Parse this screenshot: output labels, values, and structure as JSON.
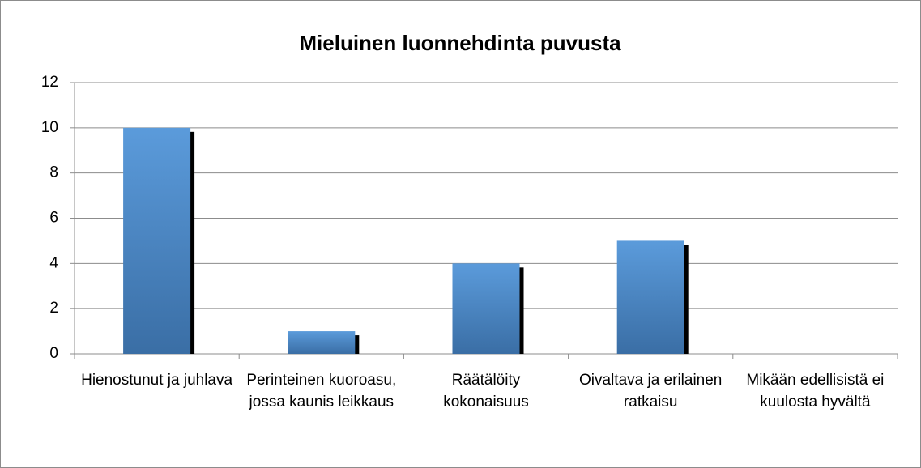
{
  "chart_data": {
    "type": "bar",
    "title": "Mieluinen luonnehdinta puvusta",
    "categories": [
      "Hienostunut ja juhlava",
      "Perinteinen kuoroasu, jossa kaunis leikkaus",
      "Räätälöity kokonaisuus",
      "Oivaltava ja erilainen ratkaisu",
      "Mikään edellisistä ei kuulosta hyvältä"
    ],
    "values": [
      10,
      1,
      4,
      5,
      0
    ],
    "color": "#4a86c8",
    "ylim": [
      0,
      12
    ],
    "yticks": [
      0,
      2,
      4,
      6,
      8,
      10,
      12
    ],
    "grid": true
  }
}
